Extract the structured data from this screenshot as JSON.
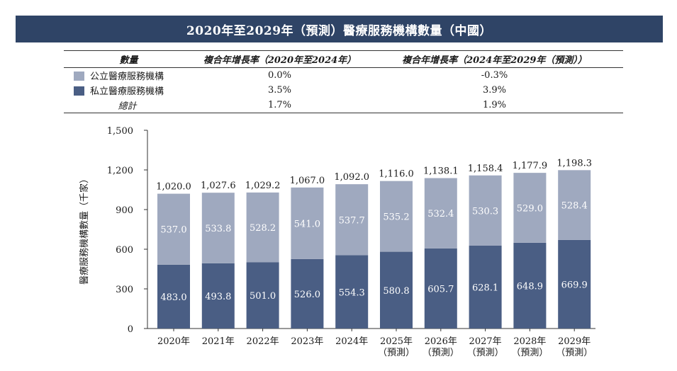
{
  "title": "2020年至2029年（預測）醫療服務機構數量（中國）",
  "colors": {
    "header_bg": "#2f4466",
    "public": "#9fa9bf",
    "private": "#4a5e84"
  },
  "cagr_table": {
    "headers": [
      "數量",
      "複合年增長率（2020年至2024年）",
      "複合年增長率（2024年至2029年（預測））"
    ],
    "rows": [
      {
        "label": "公立醫療服務機構",
        "v1": "0.0%",
        "v2": "-0.3%"
      },
      {
        "label": "私立醫療服務機構",
        "v1": "3.5%",
        "v2": "3.9%"
      },
      {
        "label": "總計",
        "v1": "1.7%",
        "v2": "1.9%"
      }
    ]
  },
  "chart_data": {
    "type": "bar",
    "stacked": true,
    "ylabel": "醫療服務機構數量（千家）",
    "ylim": [
      0,
      1500
    ],
    "yticks": [
      "0",
      "300",
      "600",
      "900",
      "1,200",
      "1,500"
    ],
    "categories": [
      [
        "2020年"
      ],
      [
        "2021年"
      ],
      [
        "2022年"
      ],
      [
        "2023年"
      ],
      [
        "2024年"
      ],
      [
        "2025年",
        "（預測）"
      ],
      [
        "2026年",
        "（預測）"
      ],
      [
        "2027年",
        "（預測）"
      ],
      [
        "2028年",
        "（預測）"
      ],
      [
        "2029年",
        "（預測）"
      ]
    ],
    "series": [
      {
        "name": "私立醫療服務機構",
        "values": [
          483.0,
          493.8,
          501.0,
          526.0,
          554.3,
          580.8,
          605.7,
          628.1,
          648.9,
          669.9
        ]
      },
      {
        "name": "公立醫療服務機構",
        "values": [
          537.0,
          533.8,
          528.2,
          541.0,
          537.7,
          535.2,
          532.4,
          530.3,
          529.0,
          528.4
        ]
      }
    ],
    "totals": [
      1020.0,
      1027.6,
      1029.2,
      1067.0,
      1092.0,
      1116.0,
      1138.1,
      1158.4,
      1177.9,
      1198.3
    ]
  }
}
